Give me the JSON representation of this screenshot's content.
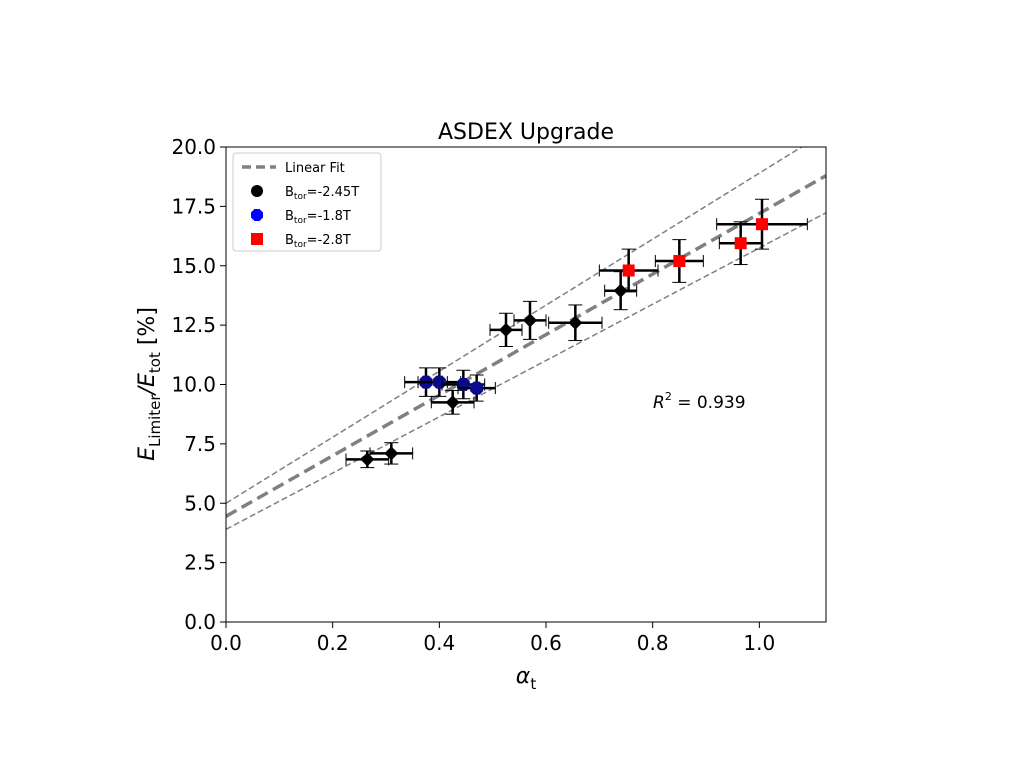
{
  "chart_data": {
    "type": "scatter",
    "title": "ASDEX Upgrade",
    "xlabel": {
      "main": "α",
      "sub": "t"
    },
    "ylabel": {
      "main1": "E",
      "sub1": "Limiter",
      "slash": "/",
      "main2": "E",
      "sub2": "tot",
      "unit": " [%]"
    },
    "xlim": [
      0,
      1.125
    ],
    "ylim": [
      0,
      20
    ],
    "xticks": [
      "0.0",
      "0.2",
      "0.4",
      "0.6",
      "0.8",
      "1.0"
    ],
    "yticks": [
      "0.0",
      "2.5",
      "5.0",
      "7.5",
      "10.0",
      "12.5",
      "15.0",
      "17.5",
      "20.0"
    ],
    "grid": false,
    "legend_position": "top-left",
    "fit": {
      "name": "Linear Fit",
      "color": "#808080",
      "center": {
        "intercept": 4.45,
        "slope": 12.75
      },
      "upper": {
        "intercept": 5.0,
        "slope": 13.9
      },
      "lower": {
        "intercept": 3.9,
        "slope": 11.85
      }
    },
    "annotation": {
      "lhs": "R",
      "sup": "2",
      "rhs": " = 0.939"
    },
    "series": [
      {
        "label_main": "B",
        "label_sub": "tor",
        "label_tail": "=-2.45T",
        "marker": "diamond",
        "color": "#000000",
        "points": [
          {
            "x": 0.265,
            "y": 6.85,
            "xerr": 0.04,
            "yerr": 0.35
          },
          {
            "x": 0.31,
            "y": 7.1,
            "xerr": 0.04,
            "yerr": 0.45
          },
          {
            "x": 0.425,
            "y": 9.25,
            "xerr": 0.04,
            "yerr": 0.5
          },
          {
            "x": 0.525,
            "y": 12.3,
            "xerr": 0.03,
            "yerr": 0.7
          },
          {
            "x": 0.57,
            "y": 12.7,
            "xerr": 0.03,
            "yerr": 0.8
          },
          {
            "x": 0.655,
            "y": 12.6,
            "xerr": 0.05,
            "yerr": 0.75
          },
          {
            "x": 0.74,
            "y": 13.95,
            "xerr": 0.03,
            "yerr": 0.8
          }
        ]
      },
      {
        "label_main": "B",
        "label_sub": "tor",
        "label_tail": "=-1.8T",
        "marker": "octagon",
        "color": "#0a0a8c",
        "points": [
          {
            "x": 0.375,
            "y": 10.1,
            "xerr": 0.04,
            "yerr": 0.6
          },
          {
            "x": 0.4,
            "y": 10.1,
            "xerr": 0.04,
            "yerr": 0.6
          },
          {
            "x": 0.445,
            "y": 10.0,
            "xerr": 0.04,
            "yerr": 0.6
          },
          {
            "x": 0.47,
            "y": 9.85,
            "xerr": 0.035,
            "yerr": 0.55
          }
        ]
      },
      {
        "label_main": "B",
        "label_sub": "tor",
        "label_tail": "=-2.8T",
        "marker": "square",
        "color": "#ff0000",
        "points": [
          {
            "x": 0.755,
            "y": 14.8,
            "xerr": 0.055,
            "yerr": 0.9
          },
          {
            "x": 0.85,
            "y": 15.2,
            "xerr": 0.045,
            "yerr": 0.9
          },
          {
            "x": 0.965,
            "y": 15.95,
            "xerr": 0.04,
            "yerr": 0.9
          },
          {
            "x": 1.005,
            "y": 16.75,
            "xerr": 0.085,
            "yerr": 1.05
          }
        ]
      }
    ]
  }
}
